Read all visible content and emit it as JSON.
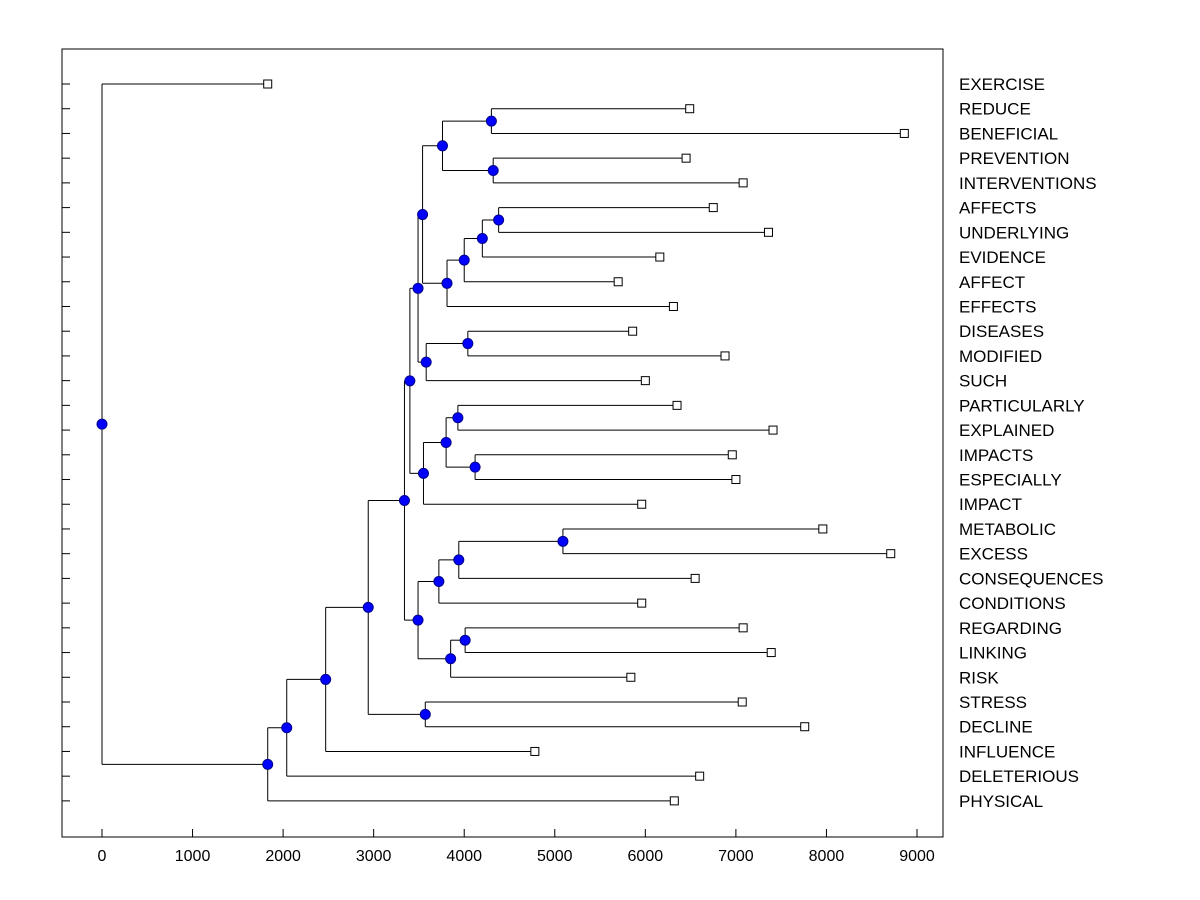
{
  "chart_data": {
    "type": "dendrogram",
    "xlim": [
      -450,
      9300
    ],
    "x_ticks": [
      0,
      1000,
      2000,
      3000,
      4000,
      5000,
      6000,
      7000,
      8000,
      9000
    ],
    "x_tick_labels": [
      "0",
      "1000",
      "2000",
      "3000",
      "4000",
      "5000",
      "6000",
      "7000",
      "8000",
      "9000"
    ],
    "leaves": [
      {
        "label": "EXERCISE",
        "x": 1830
      },
      {
        "label": "REDUCE",
        "x": 6490
      },
      {
        "label": "BENEFICIAL",
        "x": 8860
      },
      {
        "label": "PREVENTION",
        "x": 6450
      },
      {
        "label": "INTERVENTIONS",
        "x": 7080
      },
      {
        "label": "AFFECTS",
        "x": 6750
      },
      {
        "label": "UNDERLYING",
        "x": 7360
      },
      {
        "label": "EVIDENCE",
        "x": 6160
      },
      {
        "label": "AFFECT",
        "x": 5700
      },
      {
        "label": "EFFECTS",
        "x": 6310
      },
      {
        "label": "DISEASES",
        "x": 5860
      },
      {
        "label": "MODIFIED",
        "x": 6880
      },
      {
        "label": "SUCH",
        "x": 6000
      },
      {
        "label": "PARTICULARLY",
        "x": 6350
      },
      {
        "label": "EXPLAINED",
        "x": 7410
      },
      {
        "label": "IMPACTS",
        "x": 6960
      },
      {
        "label": "ESPECIALLY",
        "x": 7000
      },
      {
        "label": "IMPACT",
        "x": 5960
      },
      {
        "label": "METABOLIC",
        "x": 7960
      },
      {
        "label": "EXCESS",
        "x": 8710
      },
      {
        "label": "CONSEQUENCES",
        "x": 6550
      },
      {
        "label": "CONDITIONS",
        "x": 5960
      },
      {
        "label": "REGARDING",
        "x": 7080
      },
      {
        "label": "LINKING",
        "x": 7390
      },
      {
        "label": "RISK",
        "x": 5840
      },
      {
        "label": "STRESS",
        "x": 7070
      },
      {
        "label": "DECLINE",
        "x": 7760
      },
      {
        "label": "INFLUENCE",
        "x": 4780
      },
      {
        "label": "DELETERIOUS",
        "x": 6600
      },
      {
        "label": "PHYSICAL",
        "x": 6320
      }
    ],
    "merges": [
      {
        "x": 4300,
        "children": [
          "L1",
          "L2"
        ]
      },
      {
        "x": 4320,
        "children": [
          "L3",
          "L4"
        ]
      },
      {
        "x": 3760,
        "children": [
          "M0",
          "M1"
        ]
      },
      {
        "x": 4380,
        "children": [
          "L5",
          "L6"
        ]
      },
      {
        "x": 4200,
        "children": [
          "M3",
          "L7"
        ]
      },
      {
        "x": 4000,
        "children": [
          "M4",
          "L8"
        ]
      },
      {
        "x": 3810,
        "children": [
          "M5",
          "L9"
        ]
      },
      {
        "x": 3540,
        "children": [
          "M2",
          "M6"
        ]
      },
      {
        "x": 4040,
        "children": [
          "L10",
          "L11"
        ]
      },
      {
        "x": 3580,
        "children": [
          "M8",
          "L12"
        ]
      },
      {
        "x": 3490,
        "children": [
          "M7",
          "M9"
        ]
      },
      {
        "x": 3930,
        "children": [
          "L13",
          "L14"
        ]
      },
      {
        "x": 4120,
        "children": [
          "L15",
          "L16"
        ]
      },
      {
        "x": 3800,
        "children": [
          "M11",
          "M12"
        ]
      },
      {
        "x": 3550,
        "children": [
          "M13",
          "L17"
        ]
      },
      {
        "x": 3400,
        "children": [
          "M10",
          "M14"
        ]
      },
      {
        "x": 5090,
        "children": [
          "L18",
          "L19"
        ]
      },
      {
        "x": 3940,
        "children": [
          "M16",
          "L20"
        ]
      },
      {
        "x": 3720,
        "children": [
          "M17",
          "L21"
        ]
      },
      {
        "x": 4010,
        "children": [
          "L22",
          "L23"
        ]
      },
      {
        "x": 3850,
        "children": [
          "M19",
          "L24"
        ]
      },
      {
        "x": 3490,
        "children": [
          "M18",
          "M20"
        ]
      },
      {
        "x": 3340,
        "children": [
          "M15",
          "M21"
        ]
      },
      {
        "x": 3570,
        "children": [
          "L25",
          "L26"
        ]
      },
      {
        "x": 2940,
        "children": [
          "M22",
          "M23"
        ]
      },
      {
        "x": 2470,
        "children": [
          "M24",
          "L27"
        ]
      },
      {
        "x": 2040,
        "children": [
          "M25",
          "L28"
        ]
      },
      {
        "x": 1830,
        "children": [
          "M26",
          "L29"
        ]
      },
      {
        "x": 0,
        "children": [
          "L0",
          "M27"
        ]
      }
    ]
  }
}
